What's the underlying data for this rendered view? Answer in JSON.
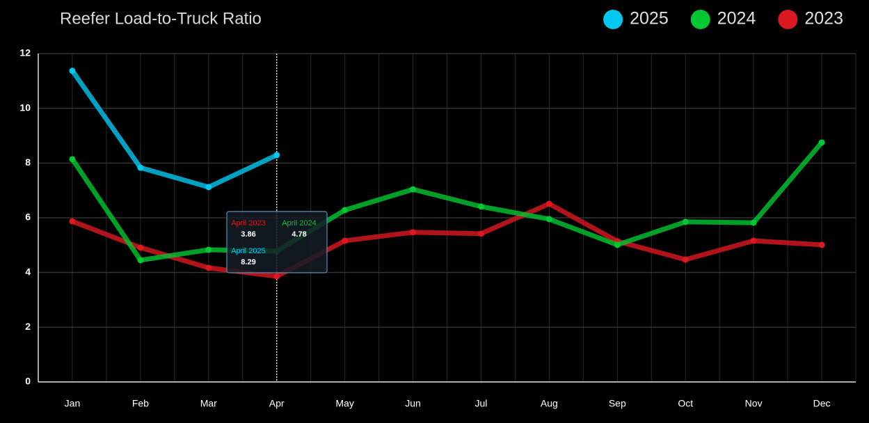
{
  "chart_data": {
    "type": "line",
    "title": "Reefer Load-to-Truck Ratio",
    "categories": [
      "Jan",
      "Feb",
      "Mar",
      "Apr",
      "May",
      "Jun",
      "Jul",
      "Aug",
      "Sep",
      "Oct",
      "Nov",
      "Dec"
    ],
    "series": [
      {
        "name": "2025",
        "color": "#00c8f0",
        "values": [
          11.37,
          7.83,
          7.12,
          8.29,
          null,
          null,
          null,
          null,
          null,
          null,
          null,
          null
        ]
      },
      {
        "name": "2024",
        "color": "#00c832",
        "values": [
          8.14,
          4.45,
          4.83,
          4.78,
          6.28,
          7.04,
          6.41,
          5.95,
          5.01,
          5.85,
          5.82,
          8.75
        ]
      },
      {
        "name": "2023",
        "color": "#dc1820",
        "values": [
          5.87,
          4.91,
          4.17,
          3.86,
          5.16,
          5.47,
          5.42,
          6.51,
          5.14,
          4.47,
          5.16,
          5.01
        ]
      }
    ],
    "ylim": [
      0,
      12
    ],
    "yticks": [
      0,
      2,
      4,
      6,
      8,
      10,
      12
    ],
    "grid": true,
    "tooltip": [
      "April 2023",
      "April 2024",
      "April 2025"
    ]
  }
}
